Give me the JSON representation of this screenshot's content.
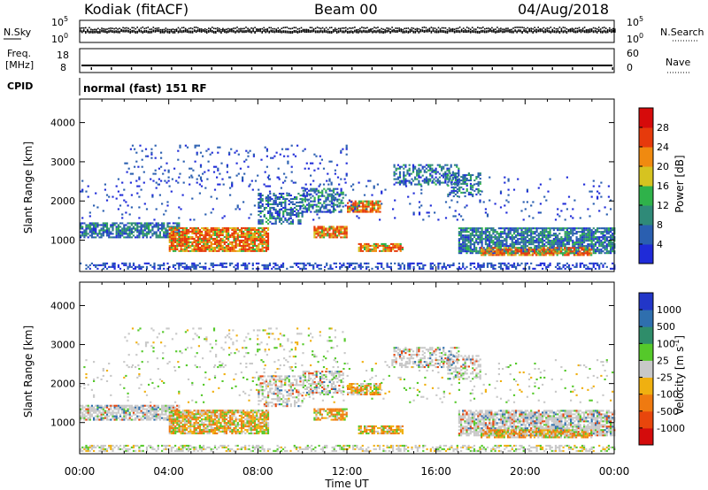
{
  "header": {
    "title": "Kodiak (fitACF)",
    "beam": "Beam 00",
    "date": "04/Aug/2018"
  },
  "sky_panel": {
    "left_label": "N.Sky",
    "top_tick": "10^5",
    "bottom_tick": "10^0",
    "right_label": "N.Search"
  },
  "freq_panel": {
    "left_label": "Freq.",
    "unit": "[MHz]",
    "top_tick": "18",
    "bottom_tick": "8",
    "right_top_tick": "60",
    "right_bottom_tick": "0",
    "right_label": "Nave"
  },
  "cpid": {
    "label": "CPID",
    "text": "normal (fast) 151 RF"
  },
  "chart_data": [
    {
      "type": "heatmap",
      "title": "",
      "ylabel": "Slant Range [km]",
      "ylim": [
        200,
        4600
      ],
      "y_ticks": [
        1000,
        2000,
        3000,
        4000
      ],
      "x_ticks": [
        "00:00",
        "04:00",
        "08:00",
        "12:00",
        "16:00",
        "20:00",
        "00:00"
      ],
      "xlim_hours": [
        0,
        24
      ],
      "colorbar": {
        "label": "Power [dB]",
        "ticks": [
          4,
          8,
          12,
          16,
          20,
          24,
          28
        ],
        "colors": [
          "#1f2bd8",
          "#2a5fb0",
          "#2f8a78",
          "#2fb24a",
          "#d6c320",
          "#f08a10",
          "#e63a0c",
          "#d60b0b"
        ]
      }
    },
    {
      "type": "heatmap",
      "title": "",
      "xlabel": "Time UT",
      "ylabel": "Slant Range [km]",
      "ylim": [
        200,
        4600
      ],
      "y_ticks": [
        1000,
        2000,
        3000,
        4000
      ],
      "x_ticks": [
        "00:00",
        "04:00",
        "08:00",
        "12:00",
        "16:00",
        "20:00",
        "00:00"
      ],
      "xlim_hours": [
        0,
        24
      ],
      "colorbar": {
        "label": "Velocity [m s^-1]",
        "ticks": [
          1000,
          500,
          100,
          25,
          -25,
          -100,
          -500,
          -1000
        ],
        "colors": [
          "#2236c8",
          "#2f6fae",
          "#2f8d6a",
          "#55c92a",
          "#c8c8c8",
          "#f0b010",
          "#ef7a10",
          "#e8460c",
          "#d40c0c"
        ]
      }
    }
  ]
}
